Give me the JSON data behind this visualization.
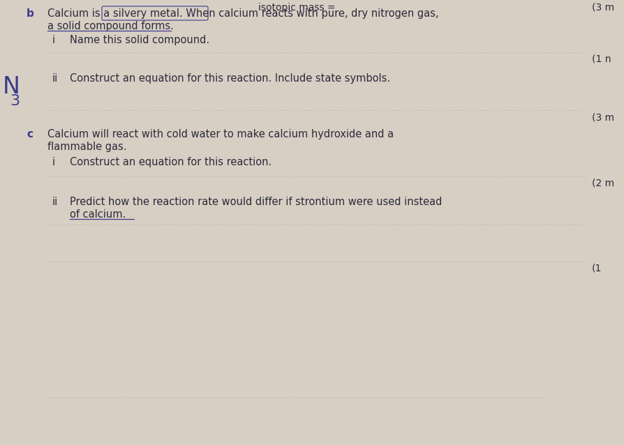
{
  "bg_color": "#d8cfc4",
  "text_color": "#2a2a3a",
  "blue_color": "#3a3a8c",
  "dotted_color": "#888888",
  "title_top": "isotopic mass =",
  "marks_top": "(3 m",
  "b_label": "b",
  "b_text_line1": "Calcium is a silvery metal. When calcium reacts with pure, dry nitrogen gas,",
  "b_text_line2": "a solid compound forms.",
  "b_i_label": "i",
  "b_i_text": "Name this solid compound.",
  "marks_1n": "(1 n",
  "b_ii_label": "ii",
  "b_ii_text": "Construct an equation for this reaction. Include state symbols.",
  "side_N": "N",
  "side_3": "3",
  "marks_3m": "(3 m",
  "c_label": "c",
  "c_text_line1": "Calcium will react with cold water to make calcium hydroxide and a",
  "c_text_line2": "flammable gas.",
  "c_i_label": "i",
  "c_i_text": "Construct an equation for this reaction.",
  "marks_2m": "(2 m",
  "c_ii_label": "ii",
  "c_ii_text_line1": "Predict how the reaction rate would differ if strontium were used instead",
  "c_ii_text_line2": "of calcium.",
  "marks_1_bottom": "(1"
}
